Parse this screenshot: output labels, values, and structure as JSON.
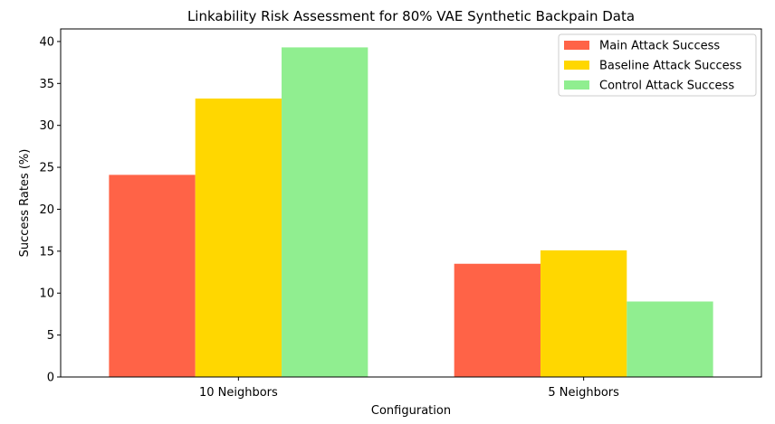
{
  "chart_data": {
    "type": "bar",
    "title": "Linkability Risk Assessment for 80% VAE Synthetic Backpain Data",
    "xlabel": "Configuration",
    "ylabel": "Success Rates (%)",
    "categories": [
      "10 Neighbors",
      "5 Neighbors"
    ],
    "ylim": [
      0,
      41.5
    ],
    "yticks": [
      0,
      5,
      10,
      15,
      20,
      25,
      30,
      35,
      40
    ],
    "yticklabels": [
      "0",
      "5",
      "10",
      "15",
      "20",
      "25",
      "30",
      "35",
      "40"
    ],
    "grid": false,
    "legend_position": "top-right",
    "series": [
      {
        "name": "Main Attack Success",
        "color": "#FF6347",
        "values": [
          24.1,
          13.5
        ]
      },
      {
        "name": "Baseline Attack Success",
        "color": "#FFD700",
        "values": [
          33.2,
          15.1
        ]
      },
      {
        "name": "Control Attack Success",
        "color": "#90EE90",
        "values": [
          39.3,
          9.0
        ]
      }
    ]
  }
}
